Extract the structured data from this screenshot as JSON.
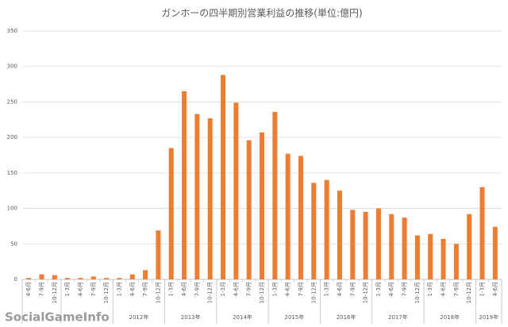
{
  "chart_data": {
    "type": "bar",
    "title": "ガンホーの四半期別営業利益の推移(単位:億円)",
    "groups": [
      {
        "label": null,
        "categories": [
          "4-6月",
          "7-9月",
          "10-12月"
        ]
      },
      {
        "label": null,
        "categories": [
          "1-3月",
          "4-6月",
          "7-9月",
          "10-12月"
        ]
      },
      {
        "label": "2012年",
        "categories": [
          "1-3月",
          "4-6月",
          "7-9月",
          "10-12月"
        ]
      },
      {
        "label": "2013年",
        "categories": [
          "1-3月",
          "4-6月",
          "7-9月",
          "10-12月"
        ]
      },
      {
        "label": "2014年",
        "categories": [
          "1-3月",
          "4-6月",
          "7-9月",
          "10-12月"
        ]
      },
      {
        "label": "2015年",
        "categories": [
          "1-3月",
          "4-6月",
          "7-9月",
          "10-12月"
        ]
      },
      {
        "label": "2016年",
        "categories": [
          "1-3月",
          "4-6月",
          "7-9月",
          "10-12月"
        ]
      },
      {
        "label": "2017年",
        "categories": [
          "1-3月",
          "4-6月",
          "7-9月",
          "10-12月"
        ]
      },
      {
        "label": "2018年",
        "categories": [
          "1-3月",
          "4-6月",
          "7-9月",
          "10-12月"
        ]
      },
      {
        "label": "2019年",
        "categories": [
          "1-3月",
          "4-6月"
        ]
      }
    ],
    "values": [
      2,
      7,
      6,
      2,
      2,
      4,
      2,
      2,
      7,
      13,
      69,
      185,
      265,
      233,
      227,
      288,
      249,
      196,
      207,
      236,
      177,
      174,
      136,
      140,
      125,
      98,
      95,
      100,
      92,
      87,
      62,
      64,
      57,
      50,
      92,
      130,
      74
    ],
    "color": "#ed7d31",
    "ylim": [
      0,
      350
    ],
    "yticks": [
      0,
      50,
      100,
      150,
      200,
      250,
      300,
      350
    ],
    "grid": true,
    "watermark": "SocialGameInfo"
  }
}
